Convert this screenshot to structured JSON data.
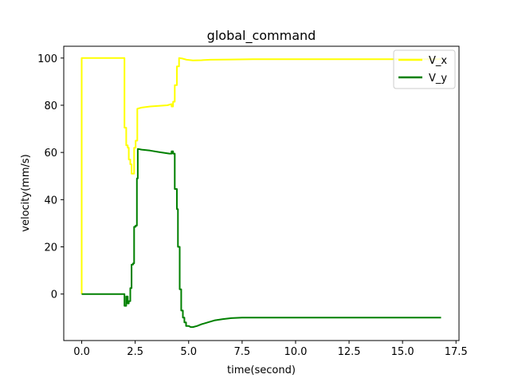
{
  "chart_data": {
    "type": "line",
    "title": "global_command",
    "xlabel": "time(second)",
    "ylabel": "velocity(mm/s)",
    "xlim": [
      -0.84,
      17.64
    ],
    "ylim": [
      -19.7,
      105.0
    ],
    "xticks": [
      0.0,
      2.5,
      5.0,
      7.5,
      10.0,
      12.5,
      15.0,
      17.5
    ],
    "xtick_labels": [
      "0.0",
      "2.5",
      "5.0",
      "7.5",
      "10.0",
      "12.5",
      "15.0",
      "17.5"
    ],
    "yticks": [
      0,
      20,
      40,
      60,
      80,
      100
    ],
    "ytick_labels": [
      "0",
      "20",
      "40",
      "60",
      "80",
      "100"
    ],
    "grid": false,
    "legend": "top-right",
    "series": [
      {
        "name": "V_x",
        "color": "#ffff00",
        "points": [
          [
            0.0,
            0.0
          ],
          [
            0.0,
            100.0
          ],
          [
            2.0,
            100.0
          ],
          [
            2.0,
            70.5
          ],
          [
            2.08,
            70.5
          ],
          [
            2.08,
            63.0
          ],
          [
            2.15,
            63.0
          ],
          [
            2.15,
            62.0
          ],
          [
            2.2,
            62.0
          ],
          [
            2.2,
            57.0
          ],
          [
            2.27,
            57.0
          ],
          [
            2.27,
            55.0
          ],
          [
            2.33,
            55.0
          ],
          [
            2.33,
            51.0
          ],
          [
            2.45,
            51.0
          ],
          [
            2.45,
            62.0
          ],
          [
            2.52,
            62.0
          ],
          [
            2.52,
            65.0
          ],
          [
            2.6,
            65.0
          ],
          [
            2.6,
            78.5
          ],
          [
            2.8,
            79.0
          ],
          [
            3.2,
            79.5
          ],
          [
            4.0,
            80.0
          ],
          [
            4.2,
            80.5
          ],
          [
            4.2,
            79.5
          ],
          [
            4.27,
            79.5
          ],
          [
            4.27,
            81.5
          ],
          [
            4.35,
            81.5
          ],
          [
            4.35,
            88.5
          ],
          [
            4.45,
            88.5
          ],
          [
            4.45,
            96.5
          ],
          [
            4.55,
            96.5
          ],
          [
            4.55,
            100.0
          ],
          [
            4.7,
            99.8
          ],
          [
            4.9,
            99.3
          ],
          [
            5.2,
            99.0
          ],
          [
            5.6,
            99.1
          ],
          [
            6.0,
            99.3
          ],
          [
            7.0,
            99.4
          ],
          [
            8.0,
            99.5
          ],
          [
            10.0,
            99.5
          ],
          [
            12.0,
            99.5
          ],
          [
            14.0,
            99.5
          ],
          [
            16.8,
            99.5
          ]
        ]
      },
      {
        "name": "V_y",
        "color": "#008000",
        "points": [
          [
            0.0,
            0.0
          ],
          [
            2.0,
            0.0
          ],
          [
            2.0,
            -5.0
          ],
          [
            2.08,
            -5.0
          ],
          [
            2.08,
            -1.0
          ],
          [
            2.15,
            -1.0
          ],
          [
            2.15,
            -4.0
          ],
          [
            2.2,
            -4.0
          ],
          [
            2.2,
            -3.0
          ],
          [
            2.27,
            -3.0
          ],
          [
            2.27,
            2.5
          ],
          [
            2.33,
            2.5
          ],
          [
            2.33,
            12.5
          ],
          [
            2.4,
            12.5
          ],
          [
            2.4,
            13.0
          ],
          [
            2.45,
            13.0
          ],
          [
            2.45,
            28.5
          ],
          [
            2.52,
            28.5
          ],
          [
            2.52,
            29.0
          ],
          [
            2.58,
            29.0
          ],
          [
            2.58,
            49.0
          ],
          [
            2.62,
            49.0
          ],
          [
            2.62,
            61.5
          ],
          [
            2.8,
            61.2
          ],
          [
            3.2,
            60.8
          ],
          [
            3.6,
            60.2
          ],
          [
            4.1,
            59.5
          ],
          [
            4.2,
            59.5
          ],
          [
            4.2,
            60.5
          ],
          [
            4.27,
            60.5
          ],
          [
            4.27,
            59.5
          ],
          [
            4.35,
            59.5
          ],
          [
            4.35,
            44.5
          ],
          [
            4.45,
            44.5
          ],
          [
            4.45,
            36.0
          ],
          [
            4.5,
            36.0
          ],
          [
            4.5,
            20.0
          ],
          [
            4.58,
            20.0
          ],
          [
            4.58,
            2.0
          ],
          [
            4.65,
            2.0
          ],
          [
            4.65,
            -7.0
          ],
          [
            4.73,
            -7.0
          ],
          [
            4.73,
            -10.0
          ],
          [
            4.8,
            -10.0
          ],
          [
            4.8,
            -12.0
          ],
          [
            4.88,
            -12.0
          ],
          [
            4.88,
            -13.5
          ],
          [
            5.0,
            -13.5
          ],
          [
            5.1,
            -14.0
          ],
          [
            5.2,
            -14.0
          ],
          [
            5.4,
            -13.5
          ],
          [
            5.6,
            -12.8
          ],
          [
            5.9,
            -12.0
          ],
          [
            6.2,
            -11.2
          ],
          [
            6.6,
            -10.6
          ],
          [
            7.0,
            -10.2
          ],
          [
            7.5,
            -10.0
          ],
          [
            8.0,
            -10.0
          ],
          [
            10.0,
            -10.0
          ],
          [
            12.0,
            -10.0
          ],
          [
            14.0,
            -10.0
          ],
          [
            16.8,
            -10.0
          ]
        ]
      }
    ]
  }
}
